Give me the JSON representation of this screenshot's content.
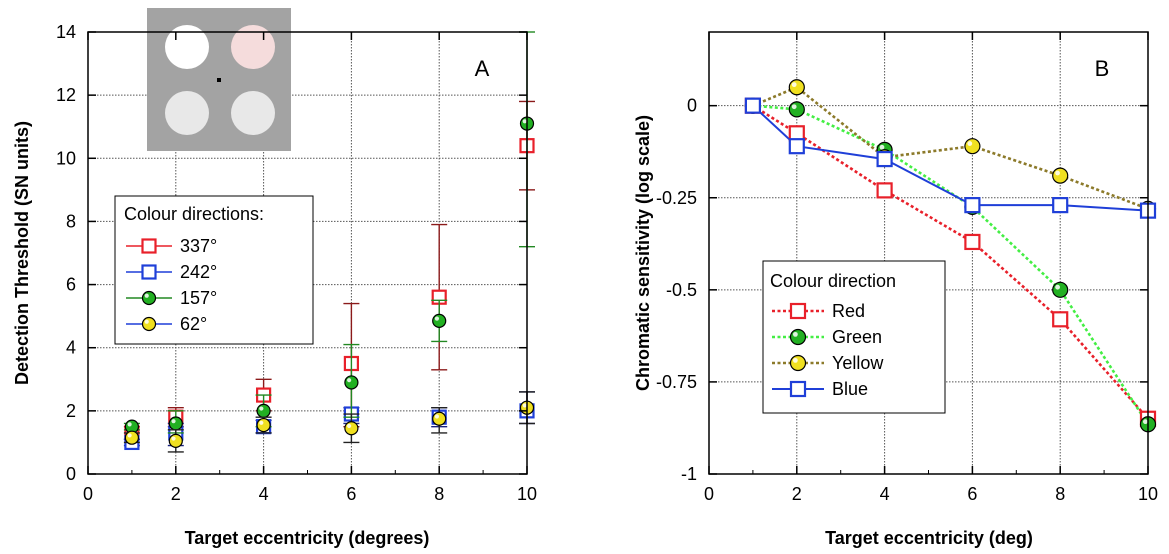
{
  "chart_data": [
    {
      "panel_label": "A",
      "type": "scatter",
      "xlabel": "Target eccentricity (degrees)",
      "ylabel": "Detection Threshold (SN units)",
      "xlim": [
        0,
        10
      ],
      "ylim": [
        0,
        14
      ],
      "xticks": [
        0,
        2,
        4,
        6,
        8,
        10
      ],
      "yticks": [
        0,
        2,
        4,
        6,
        8,
        10,
        12,
        14
      ],
      "grid": true,
      "legend_title": "Colour directions:",
      "legend_position": "middle-left",
      "inset": "stimulus diagram: grey square with four disks (one pink) around a black fixation dot",
      "inset_colors": {
        "background": "#a3a3a3",
        "white_disk": "#ffffff",
        "pink_disk": "#f5dcdc",
        "grey_disk": "#e8e8e8",
        "fixation": "#000000"
      },
      "series": [
        {
          "name": "337°",
          "marker": "square",
          "color": "#e8202a",
          "x": [
            1,
            2,
            4,
            6,
            8,
            10
          ],
          "y": [
            1.3,
            1.8,
            2.5,
            3.5,
            5.6,
            10.4
          ],
          "err_low": [
            1.1,
            1.5,
            2.0,
            1.5,
            3.3,
            9.0
          ],
          "err_high": [
            1.5,
            2.1,
            3.0,
            5.4,
            7.9,
            11.8
          ]
        },
        {
          "name": "242°",
          "marker": "square",
          "color": "#1f3fd8",
          "x": [
            1,
            2,
            4,
            6,
            8,
            10
          ],
          "y": [
            1.0,
            1.3,
            1.5,
            1.9,
            1.8,
            2.0
          ],
          "err_low": [
            0.9,
            0.9,
            1.3,
            1.6,
            1.5,
            1.6
          ],
          "err_high": [
            1.1,
            1.6,
            1.7,
            2.1,
            2.1,
            2.6
          ]
        },
        {
          "name": "157°",
          "marker": "circle",
          "color": "#22b022",
          "x": [
            1,
            2,
            4,
            6,
            8,
            10
          ],
          "y": [
            1.5,
            1.6,
            2.0,
            2.9,
            4.85,
            11.1
          ],
          "err_low": [
            1.4,
            1.3,
            1.5,
            1.8,
            4.2,
            7.2
          ],
          "err_high": [
            1.6,
            2.0,
            2.5,
            4.1,
            5.5,
            14.0
          ]
        },
        {
          "name": "62°",
          "marker": "circle",
          "color": "#f0e020",
          "x": [
            1,
            2,
            4,
            6,
            8,
            10
          ],
          "y": [
            1.15,
            1.05,
            1.55,
            1.45,
            1.75,
            2.1
          ],
          "err_low": [
            1.0,
            0.7,
            1.3,
            1.0,
            1.3,
            1.6
          ],
          "err_high": [
            1.3,
            1.4,
            1.8,
            1.9,
            2.1,
            2.6
          ]
        }
      ]
    },
    {
      "panel_label": "B",
      "type": "line",
      "xlabel": "Target eccentricity (deg)",
      "ylabel": "Chromatic sensitivity (log scale)",
      "xlim": [
        0,
        10
      ],
      "ylim": [
        -1,
        0.2
      ],
      "xticks": [
        0,
        2,
        4,
        6,
        8,
        10
      ],
      "yticks": [
        0,
        -0.25,
        -0.5,
        -0.75,
        -1
      ],
      "ytick_labels": [
        "0",
        "-0.25",
        "-0.5",
        "-0.75",
        "-1"
      ],
      "grid": true,
      "legend_title": "Colour direction",
      "legend_position": "bottom-left",
      "series": [
        {
          "name": "Red",
          "marker": "square",
          "color": "#e8202a",
          "line": "dotted",
          "line_color": "#e8202a",
          "x": [
            1,
            2,
            4,
            6,
            8,
            10
          ],
          "y": [
            0,
            -0.075,
            -0.23,
            -0.37,
            -0.58,
            -0.85
          ]
        },
        {
          "name": "Green",
          "marker": "circle",
          "color": "#22b022",
          "line": "dotted",
          "line_color": "#44ee44",
          "x": [
            1,
            2,
            4,
            6,
            8,
            10
          ],
          "y": [
            0,
            -0.01,
            -0.12,
            -0.275,
            -0.5,
            -0.865
          ]
        },
        {
          "name": "Yellow",
          "marker": "circle",
          "color": "#f0e020",
          "line": "dotted",
          "line_color": "#8c7a2a",
          "x": [
            1,
            2,
            4,
            6,
            8,
            10
          ],
          "y": [
            0,
            0.05,
            -0.14,
            -0.11,
            -0.19,
            -0.28
          ]
        },
        {
          "name": "Blue",
          "marker": "square",
          "color": "#1f3fd8",
          "line": "solid",
          "line_color": "#1f3fd8",
          "x": [
            1,
            2,
            4,
            6,
            8,
            10
          ],
          "y": [
            0,
            -0.11,
            -0.145,
            -0.27,
            -0.27,
            -0.285
          ]
        }
      ]
    }
  ]
}
